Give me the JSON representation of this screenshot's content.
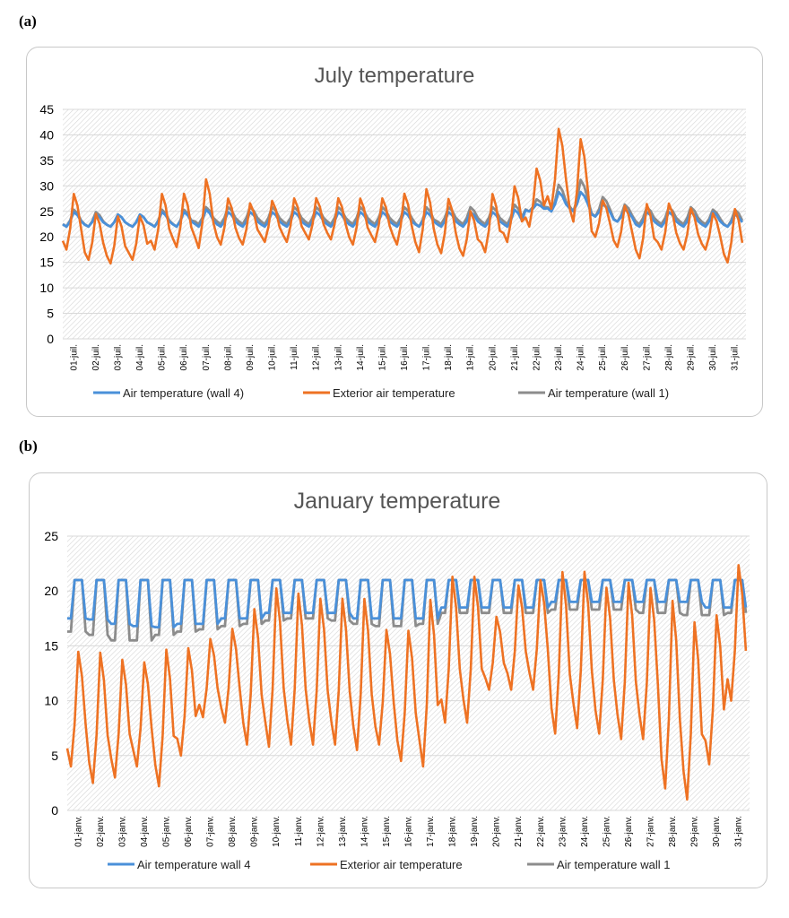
{
  "panels": [
    {
      "label": "(a)"
    },
    {
      "label": "(b)"
    }
  ],
  "chart_data": [
    {
      "type": "line",
      "title": "July temperature",
      "ylim": [
        0,
        45
      ],
      "yticks": [
        0,
        5,
        10,
        15,
        20,
        25,
        30,
        35,
        40,
        45
      ],
      "xticks": [
        "01-juil.",
        "02-juil.",
        "03-juil.",
        "04-juil.",
        "05-juil.",
        "06-juil.",
        "07-juil.",
        "08-juil.",
        "09-juil.",
        "10-juil.",
        "11-juil.",
        "12-juil.",
        "13-juil.",
        "14-juil.",
        "15-juil.",
        "16-juil.",
        "17-juil.",
        "18-juil.",
        "19-juil.",
        "20-juil.",
        "21-juil.",
        "22-juil.",
        "23-juil.",
        "24-juil.",
        "25-juil.",
        "26-juil.",
        "27-juil.",
        "28-juil.",
        "29-juil.",
        "30-juil.",
        "31-juil."
      ],
      "x_unit": "day",
      "grid": true,
      "legend_position": "bottom",
      "series": [
        {
          "name": "Air temperature (wall 4)",
          "color": "#4a90d9",
          "daily_min": [
            22,
            22,
            22,
            22,
            22,
            22,
            22,
            22,
            22,
            22,
            22,
            22,
            22,
            22,
            22,
            22,
            22,
            22,
            22,
            22,
            22,
            25,
            25,
            25,
            24,
            23,
            22,
            22,
            22,
            22,
            22
          ],
          "daily_max": [
            25,
            24.5,
            24.5,
            24.5,
            25,
            25,
            25.5,
            25,
            25,
            25,
            25,
            25,
            25,
            25,
            25,
            25,
            25,
            25,
            25,
            25,
            25.5,
            26.5,
            29,
            29,
            26.5,
            25.5,
            25,
            25,
            25,
            25,
            24.5
          ]
        },
        {
          "name": "Exterior air temperature",
          "color": "#ee7223",
          "daily_min": [
            17.5,
            15.5,
            14.8,
            15.5,
            17.5,
            18,
            17.8,
            18.5,
            18.5,
            19,
            19,
            19.5,
            19.5,
            18.5,
            19,
            18.5,
            17,
            16.8,
            16.3,
            17,
            19,
            22,
            25.5,
            23,
            20,
            18,
            15.8,
            17.5,
            17.5,
            17.5,
            15
          ],
          "daily_max": [
            29,
            25,
            24.5,
            24.5,
            29,
            29,
            32,
            28,
            27,
            27.5,
            28,
            28,
            28,
            28,
            28,
            29,
            30,
            28,
            25.5,
            29,
            30.5,
            34,
            42,
            40,
            27.5,
            26.5,
            27,
            27,
            26,
            25,
            26
          ]
        },
        {
          "name": "Air temperature (wall 1)",
          "color": "#8c8c8c",
          "daily_min": [
            22,
            22,
            22,
            22,
            22,
            22,
            22.5,
            22.5,
            22.5,
            22.5,
            22.5,
            22.5,
            22.5,
            22.5,
            22.5,
            22.5,
            22,
            22.5,
            22.5,
            22.5,
            22.5,
            25,
            25,
            25,
            24,
            23,
            22.5,
            22.5,
            22.5,
            22.5,
            22
          ],
          "daily_max": [
            25.5,
            25,
            24.5,
            24.5,
            25.5,
            25.5,
            26,
            26,
            26,
            26,
            26,
            26,
            26,
            26,
            26,
            26,
            26,
            26,
            26,
            26,
            26.5,
            27.5,
            30.5,
            31.5,
            28,
            26.5,
            26,
            26,
            26,
            25.5,
            25.5
          ]
        }
      ]
    },
    {
      "type": "line",
      "title": "January temperature",
      "ylim": [
        0,
        25
      ],
      "yticks": [
        0,
        5,
        10,
        15,
        20,
        25
      ],
      "xticks": [
        "01-janv.",
        "02-janv.",
        "03-janv.",
        "04-janv.",
        "05-janv.",
        "06-janv.",
        "07-janv.",
        "08-janv.",
        "09-janv.",
        "10-janv.",
        "11-janv.",
        "12-janv.",
        "13-janv.",
        "14-janv.",
        "15-janv.",
        "16-janv.",
        "17-janv.",
        "18-janv.",
        "19-janv.",
        "20-janv.",
        "21-janv.",
        "22-janv.",
        "23-janv.",
        "24-janv.",
        "25-janv.",
        "26-janv.",
        "27-janv.",
        "28-janv.",
        "29-janv.",
        "30-janv.",
        "31-janv."
      ],
      "x_unit": "day",
      "grid": true,
      "legend_position": "bottom",
      "series": [
        {
          "name": "Air temperature wall 4",
          "color": "#4a90d9",
          "daily_min": [
            17.5,
            17.4,
            17,
            16.8,
            16.7,
            17,
            17,
            17.5,
            17.5,
            18,
            18,
            18,
            18,
            17.5,
            17.5,
            17.5,
            17.5,
            18.5,
            18.5,
            18.5,
            18.5,
            18.5,
            19,
            19,
            19,
            19,
            19,
            19,
            19,
            18.5,
            18.5
          ],
          "daily_max": [
            21,
            21,
            21,
            21,
            21,
            21,
            21,
            21,
            21,
            21,
            21,
            21,
            21,
            21,
            21,
            21,
            21,
            21,
            21,
            21,
            21,
            21,
            21,
            21,
            21,
            21,
            21,
            21,
            21,
            21,
            21
          ]
        },
        {
          "name": "Exterior air temperature",
          "color": "#ee7223",
          "daily_min": [
            4,
            2.5,
            3,
            4,
            2.2,
            5,
            8.5,
            8,
            6,
            5.8,
            6,
            6,
            6,
            5.5,
            6,
            4.5,
            4,
            8,
            8,
            11,
            11,
            11,
            7,
            7.5,
            7,
            6.5,
            6.5,
            2,
            1,
            4.2,
            10
          ],
          "daily_max": [
            15,
            15,
            14.3,
            14,
            15.3,
            15.3,
            16,
            17,
            19,
            21,
            20.5,
            20,
            20,
            20,
            17,
            17,
            20,
            22,
            22,
            18,
            21,
            21.5,
            22.5,
            22.5,
            21,
            21.5,
            21,
            20,
            18,
            18.5,
            23
          ]
        },
        {
          "name": "Air temperature wall 1",
          "color": "#8c8c8c",
          "daily_min": [
            16.3,
            16,
            15.5,
            15.5,
            16,
            16.3,
            16.5,
            16.8,
            17,
            17.3,
            17.5,
            17.5,
            17.3,
            17,
            16.8,
            16.8,
            17,
            18,
            18,
            18,
            18,
            18,
            18.3,
            18.3,
            18.3,
            18.3,
            18,
            18,
            17.8,
            17.8,
            18
          ],
          "daily_max": [
            21,
            21,
            21,
            21,
            21,
            21,
            21,
            21,
            21,
            21,
            21,
            21,
            21,
            21,
            21,
            21,
            21,
            21,
            21,
            21,
            21,
            21,
            21,
            21,
            21,
            21,
            21,
            21,
            21,
            21,
            21
          ]
        }
      ]
    }
  ]
}
